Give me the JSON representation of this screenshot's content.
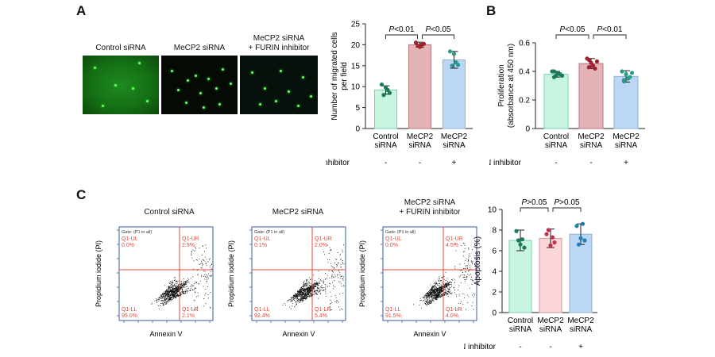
{
  "panels": {
    "A": "A",
    "B": "B",
    "C": "C"
  },
  "micrographs": {
    "titles": [
      "Control siRNA",
      "MeCP2 siRNA",
      "MeCP2 siRNA\n+ FURIN inhibitor"
    ]
  },
  "flow": {
    "titles": [
      "Control siRNA",
      "MeCP2 siRNA",
      "MeCP2 siRNA\n+ FURIN inhibitor"
    ],
    "gate_label": "Gate: (P1 in all)",
    "xlabel": "Annexin V",
    "ylabel": "Propidium iodide (PI)",
    "plots": [
      {
        "ul_name": "Q1-UL",
        "ul_val": "0.0%",
        "ur_name": "Q1-UR",
        "ur_val": "2.9%",
        "ll_name": "Q1-LL",
        "ll_val": "95.0%",
        "lr_name": "Q1-LR",
        "lr_val": "2.1%"
      },
      {
        "ul_name": "Q1-UL",
        "ul_val": "0.1%",
        "ur_name": "Q1-UR",
        "ur_val": "2.0%",
        "ll_name": "Q1-LL",
        "ll_val": "92.4%",
        "lr_name": "Q1-LR",
        "lr_val": "5.4%"
      },
      {
        "ul_name": "Q1-UL",
        "ul_val": "0.0%",
        "ur_name": "Q1-UR",
        "ur_val": "4.5%",
        "ll_name": "Q1-LL",
        "ll_val": "91.5%",
        "lr_name": "Q1-LR",
        "lr_val": "4.0%"
      }
    ]
  },
  "treatment_row": {
    "label": "FURIN inhibitor",
    "values": [
      "-",
      "-",
      "+"
    ]
  },
  "colors": {
    "control": "#c8f5e0",
    "control_dot": "#1b7a5a",
    "mecp2": "#e3b3b6",
    "mecp2_dot": "#a32232",
    "furin": "#bcd6f6",
    "furin_dot": "#2a9a8a",
    "apop_mecp2": "#fad6d8",
    "apop_mecp2_dot": "#c2304a",
    "quadrant": "#e04a3a"
  },
  "chart_data": [
    {
      "type": "bar",
      "categories": [
        "Control\nsiRNA",
        "MeCP2\nsiRNA",
        "MeCP2\nsiRNA"
      ],
      "values": [
        9.2,
        20.0,
        16.4
      ],
      "errors": [
        1.0,
        0.6,
        2.0
      ],
      "points": [
        [
          10.5,
          9.8,
          8.5,
          8.0,
          9.2
        ],
        [
          20.5,
          19.5,
          20.2,
          19.8,
          20.0
        ],
        [
          18.4,
          17.8,
          15.2,
          15.0,
          15.8
        ]
      ],
      "ylabel": "Number of migrated cells\nper field",
      "ylim": [
        0,
        25
      ],
      "yticks": [
        0,
        5,
        10,
        15,
        20,
        25
      ],
      "comparisons": [
        "P<0.01",
        "P<0.05"
      ],
      "grid": false
    },
    {
      "type": "bar",
      "categories": [
        "Control\nsiRNA",
        "MeCP2\nsiRNA",
        "MeCP2\nsiRNA"
      ],
      "values": [
        0.38,
        0.455,
        0.365
      ],
      "errors": [
        0.02,
        0.035,
        0.04
      ],
      "points": [
        [
          0.4,
          0.37,
          0.38,
          0.36,
          0.39,
          0.37,
          0.4
        ],
        [
          0.49,
          0.46,
          0.42,
          0.48,
          0.44,
          0.47,
          0.43
        ],
        [
          0.4,
          0.38,
          0.36,
          0.34,
          0.35,
          0.39,
          0.33
        ]
      ],
      "ylabel": "Proliferation\n(absorbance at 450 nm)",
      "ylim": [
        0,
        0.6
      ],
      "yticks": [
        0,
        0.2,
        0.4,
        0.6
      ],
      "ytick_labels": [
        "0",
        "0.2",
        "0.4",
        "0.6"
      ],
      "comparisons": [
        "P<0.05",
        "P<0.01"
      ],
      "grid": false
    },
    {
      "type": "bar",
      "categories": [
        "Control\nsiRNA",
        "MeCP2\nsiRNA",
        "MeCP2\nsiRNA"
      ],
      "values": [
        7.0,
        7.2,
        7.6
      ],
      "errors": [
        1.0,
        0.9,
        1.0
      ],
      "points": [
        [
          7.9,
          6.6,
          6.3,
          7.0,
          7.1
        ],
        [
          7.6,
          6.5,
          6.8,
          8.0,
          7.3
        ],
        [
          8.4,
          7.2,
          7.0,
          6.6,
          8.6
        ]
      ],
      "ylabel": "Apoptosis (%)",
      "ylim": [
        0,
        10
      ],
      "yticks": [
        0,
        2,
        4,
        6,
        8,
        10
      ],
      "comparisons": [
        "P>0.05",
        "P>0.05"
      ],
      "grid": false
    }
  ]
}
